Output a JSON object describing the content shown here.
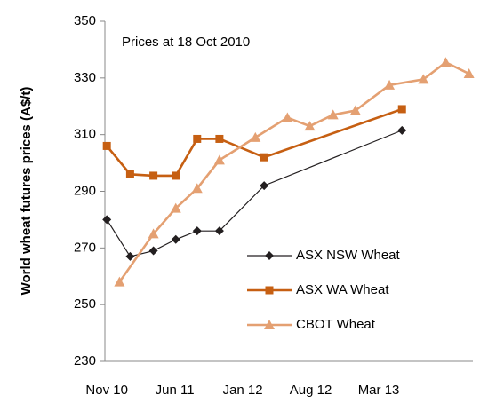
{
  "chart_data": {
    "type": "line",
    "annotation": "Prices at 18 Oct 2010",
    "y_label": "World wheat futures prices (A$/t)",
    "xlim": [
      -0.2,
      37.7
    ],
    "xticks": [
      {
        "value": 0,
        "label": "Nov 10"
      },
      {
        "value": 7,
        "label": "Jun 11"
      },
      {
        "value": 14,
        "label": "Jan 12"
      },
      {
        "value": 21,
        "label": "Aug 12"
      },
      {
        "value": 28,
        "label": "Mar 13"
      }
    ],
    "ylim": [
      230,
      350
    ],
    "yticks": [
      230,
      250,
      270,
      290,
      310,
      330,
      350
    ],
    "legend": "lower right",
    "series": [
      {
        "name": "ASX NSW Wheat",
        "color": "#231f20",
        "marker": "diamond",
        "x": [
          0,
          2.4,
          4.8,
          7.1,
          9.3,
          11.6,
          16.2,
          30.4
        ],
        "values": [
          280,
          267,
          269,
          273,
          276,
          276,
          292,
          311.5
        ]
      },
      {
        "name": "ASX WA Wheat",
        "color": "#c65f12",
        "marker": "square",
        "x": [
          0,
          2.4,
          4.8,
          7.1,
          9.3,
          11.6,
          16.2,
          30.4
        ],
        "values": [
          306,
          296,
          295.5,
          295.5,
          308.5,
          308.5,
          302,
          319
        ]
      },
      {
        "name": "CBOT Wheat",
        "color": "#e4a072",
        "marker": "triangle",
        "x": [
          1.3,
          4.8,
          7.1,
          9.3,
          11.6,
          15.3,
          18.6,
          20.9,
          23.3,
          25.6,
          29.1,
          32.6,
          34.9,
          37.3
        ],
        "values": [
          258,
          275,
          284,
          291,
          301,
          309,
          316,
          313,
          317,
          318.5,
          327.5,
          329.5,
          335.5,
          331.5
        ]
      }
    ]
  }
}
